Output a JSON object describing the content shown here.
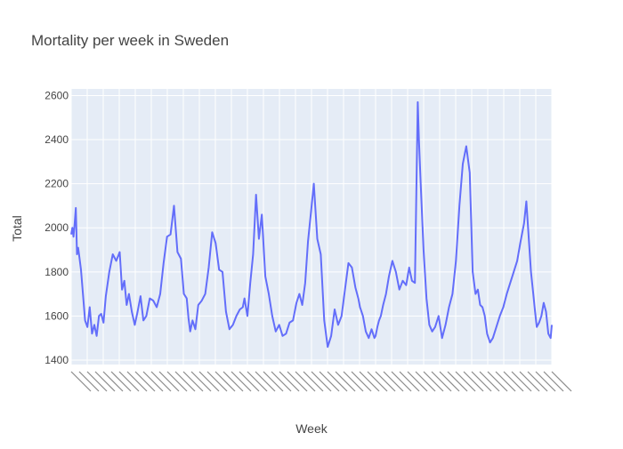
{
  "chart_data": {
    "type": "line",
    "title": "Mortality per week in Sweden",
    "xlabel": "Week",
    "ylabel": "Total",
    "ylim": [
      1380,
      2630
    ],
    "y_ticks": [
      1400,
      1600,
      1800,
      2000,
      2200,
      2400,
      2600
    ],
    "x_range": [
      2015.0,
      2023.32
    ],
    "x_tick_note": "densely packed rotated week labels (e.g. 2015V01 ...), largely overlapping and illegible",
    "grid": true,
    "legend": "none",
    "colors": {
      "line": "#636efa",
      "plot_bg": "#e5ecf6",
      "grid": "#ffffff",
      "text": "#444444",
      "title": "#444444"
    },
    "series": [
      {
        "x": [
          2015.0,
          2015.02,
          2015.04,
          2015.06,
          2015.08,
          2015.1,
          2015.12,
          2015.14,
          2015.17,
          2015.2,
          2015.24,
          2015.28,
          2015.32,
          2015.36,
          2015.4,
          2015.44,
          2015.48,
          2015.52,
          2015.56,
          2015.6,
          2015.66,
          2015.72,
          2015.78,
          2015.84,
          2015.88,
          2015.92,
          2015.96,
          2016.0,
          2016.05,
          2016.1,
          2016.15,
          2016.2,
          2016.25,
          2016.3,
          2016.36,
          2016.42,
          2016.48,
          2016.54,
          2016.6,
          2016.66,
          2016.72,
          2016.78,
          2016.84,
          2016.9,
          2016.95,
          2017.0,
          2017.03,
          2017.06,
          2017.1,
          2017.15,
          2017.2,
          2017.26,
          2017.32,
          2017.38,
          2017.44,
          2017.5,
          2017.56,
          2017.62,
          2017.68,
          2017.74,
          2017.8,
          2017.86,
          2017.92,
          2017.97,
          2018.0,
          2018.05,
          2018.1,
          2018.15,
          2018.2,
          2018.25,
          2018.3,
          2018.36,
          2018.42,
          2018.48,
          2018.54,
          2018.6,
          2018.66,
          2018.72,
          2018.78,
          2018.84,
          2018.9,
          2018.95,
          2019.0,
          2019.05,
          2019.1,
          2019.15,
          2019.2,
          2019.26,
          2019.32,
          2019.38,
          2019.44,
          2019.5,
          2019.56,
          2019.62,
          2019.68,
          2019.74,
          2019.8,
          2019.86,
          2019.92,
          2019.97,
          2020.0,
          2020.05,
          2020.1,
          2020.15,
          2020.2,
          2020.25,
          2020.27,
          2020.3,
          2020.33,
          2020.36,
          2020.4,
          2020.45,
          2020.5,
          2020.56,
          2020.62,
          2020.68,
          2020.74,
          2020.8,
          2020.85,
          2020.9,
          2020.95,
          2021.0,
          2021.02,
          2021.05,
          2021.1,
          2021.15,
          2021.2,
          2021.25,
          2021.3,
          2021.36,
          2021.42,
          2021.48,
          2021.54,
          2021.6,
          2021.66,
          2021.72,
          2021.78,
          2021.84,
          2021.9,
          2021.95,
          2022.0,
          2022.04,
          2022.08,
          2022.12,
          2022.16,
          2022.2,
          2022.25,
          2022.3,
          2022.36,
          2022.42,
          2022.48,
          2022.54,
          2022.6,
          2022.66,
          2022.72,
          2022.78,
          2022.84,
          2022.88,
          2022.92,
          2022.96,
          2023.0,
          2023.03,
          2023.06,
          2023.1,
          2023.14,
          2023.18,
          2023.22,
          2023.26,
          2023.3,
          2023.32
        ],
        "y": [
          1970,
          2000,
          1960,
          2020,
          2090,
          1880,
          1910,
          1870,
          1810,
          1710,
          1580,
          1550,
          1640,
          1520,
          1560,
          1510,
          1600,
          1610,
          1570,
          1690,
          1800,
          1880,
          1850,
          1890,
          1720,
          1760,
          1650,
          1700,
          1620,
          1560,
          1620,
          1690,
          1580,
          1600,
          1680,
          1670,
          1640,
          1700,
          1840,
          1960,
          1970,
          2100,
          1890,
          1860,
          1700,
          1680,
          1590,
          1530,
          1580,
          1540,
          1650,
          1670,
          1700,
          1820,
          1980,
          1930,
          1810,
          1800,
          1620,
          1540,
          1560,
          1600,
          1630,
          1640,
          1680,
          1600,
          1750,
          1880,
          2150,
          1950,
          2060,
          1780,
          1700,
          1600,
          1530,
          1560,
          1510,
          1520,
          1570,
          1580,
          1660,
          1700,
          1650,
          1750,
          1940,
          2070,
          2200,
          1950,
          1880,
          1580,
          1460,
          1510,
          1630,
          1560,
          1600,
          1720,
          1840,
          1820,
          1730,
          1680,
          1640,
          1600,
          1530,
          1500,
          1540,
          1500,
          1510,
          1550,
          1580,
          1600,
          1650,
          1700,
          1780,
          1850,
          1800,
          1720,
          1760,
          1740,
          1820,
          1760,
          1750,
          2570,
          2400,
          2200,
          1900,
          1680,
          1560,
          1530,
          1550,
          1600,
          1500,
          1560,
          1640,
          1700,
          1850,
          2100,
          2290,
          2370,
          2250,
          1800,
          1700,
          1720,
          1650,
          1640,
          1600,
          1520,
          1480,
          1500,
          1550,
          1600,
          1640,
          1700,
          1750,
          1800,
          1850,
          1940,
          2020,
          2120,
          1960,
          1800,
          1700,
          1620,
          1550,
          1570,
          1600,
          1660,
          1620,
          1520,
          1500,
          1560
        ]
      }
    ]
  }
}
